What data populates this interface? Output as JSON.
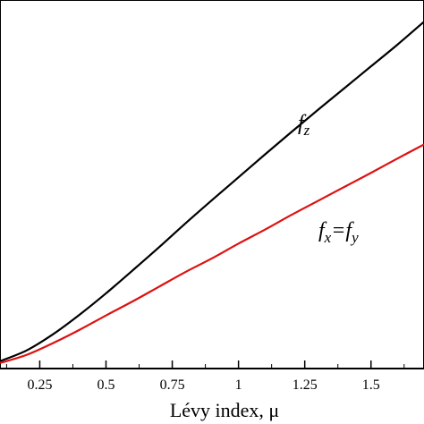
{
  "chart_data": {
    "type": "line",
    "xlabel": "Lévy index,  μ",
    "ylabel": "",
    "xlim": [
      0.1,
      1.7
    ],
    "x_ticks": [
      0.25,
      0.5,
      0.75,
      1,
      1.25,
      1.5
    ],
    "x_tick_labels": [
      "0.25",
      "0.5",
      "0.75",
      "1",
      "1.25",
      "1.5"
    ],
    "grid": false,
    "legend": "none",
    "series": [
      {
        "color": "#000000",
        "x": [
          0.1,
          0.2,
          0.3,
          0.4,
          0.5,
          0.6,
          0.7,
          0.8,
          0.9,
          1.0,
          1.1,
          1.2,
          1.3,
          1.4,
          1.5,
          1.6,
          1.7
        ],
        "y": [
          0.02,
          0.049,
          0.093,
          0.146,
          0.204,
          0.266,
          0.329,
          0.394,
          0.457,
          0.519,
          0.581,
          0.642,
          0.702,
          0.761,
          0.82,
          0.879,
          0.941
        ]
      },
      {
        "color": "#dd1111",
        "x": [
          0.1,
          0.2,
          0.3,
          0.4,
          0.5,
          0.6,
          0.7,
          0.8,
          0.9,
          1.0,
          1.1,
          1.2,
          1.3,
          1.4,
          1.5,
          1.6,
          1.7
        ],
        "y": [
          0.015,
          0.037,
          0.069,
          0.105,
          0.144,
          0.182,
          0.222,
          0.262,
          0.299,
          0.339,
          0.377,
          0.417,
          0.455,
          0.493,
          0.531,
          0.57,
          0.608
        ]
      }
    ],
    "annotations": [
      {
        "text": "f",
        "sub": "z",
        "series_index": 0
      },
      {
        "text": "f",
        "sub": "x",
        "mid": "=f",
        "sub2": "y",
        "series_index": 1
      }
    ]
  }
}
